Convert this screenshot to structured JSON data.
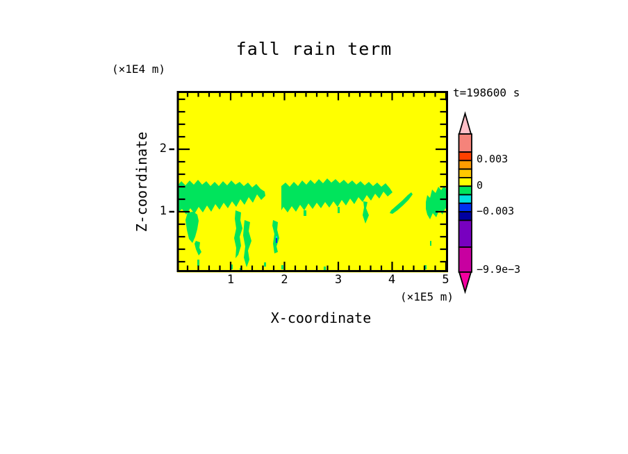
{
  "title": "fall rain term",
  "time_label": "t=198600 s",
  "axes": {
    "x": {
      "label": "X-coordinate",
      "unit": "(×1E5 m)",
      "tick_labels": [
        "1",
        "2",
        "3",
        "4",
        "5"
      ]
    },
    "z": {
      "label": "Z-coordinate",
      "unit": "(×1E4 m)",
      "tick_labels": [
        "1",
        "2"
      ]
    }
  },
  "colorbar": {
    "tick_labels": [
      "0.003",
      "0",
      "−0.003",
      "−9.9e−3"
    ],
    "colors": [
      "#FFC0C8",
      "#F5837A",
      "#FF4000",
      "#FF9C00",
      "#FFC800",
      "#FFFF00",
      "#00E45C",
      "#00E0E0",
      "#0030F0",
      "#0000A0",
      "#7800C0",
      "#C800A0",
      "#F500A0"
    ]
  },
  "colors": {
    "background": "#FFFFFF",
    "field_yellow": "#FFFF00",
    "anomaly_green": "#00E45C",
    "speck_blue": "#0030F0",
    "speck_cyan": "#00E0E0",
    "axis_black": "#000000"
  },
  "chart_data": {
    "type": "heatmap",
    "title": "fall rain term",
    "time": "t=198600 s",
    "xlabel": "X-coordinate",
    "x_unit": "(×1E5 m)",
    "ylabel": "Z-coordinate",
    "y_unit": "(×1E4 m)",
    "xlim": [
      0,
      5.05
    ],
    "ylim": [
      0,
      2.9
    ],
    "x_ticks": [
      1,
      2,
      3,
      4,
      5
    ],
    "y_ticks": [
      1,
      2
    ],
    "x_minor_tick_step": 0.2,
    "y_minor_tick_step": 0.2,
    "labeled_levels": [
      0.003,
      0,
      -0.003,
      -0.0099
    ],
    "palette_top_to_bottom": [
      "#FFC0C8",
      "#F5837A",
      "#FF4000",
      "#FF9C00",
      "#FFC800",
      "#FFFF00",
      "#00E45C",
      "#00E0E0",
      "#0030F0",
      "#0000A0",
      "#7800C0",
      "#C800A0",
      "#F500A0"
    ],
    "field_summary": [
      "Nearly the entire domain is in the 0 to +0.001 band (yellow).",
      "A ragged layer of slightly negative values (green, -0.001 to 0) spans most of the domain at z ≈ 0.9-1.5 ×1E4 m.",
      "The green layer breaks near x ≈ 1.7-1.95 and x ≈ 4.0-4.6 ×1E5 m; an isolated slanted green streak sits near x ≈ 4.0-4.4, z ≈ 0.9-1.2, and a separate green patch hugs the right edge.",
      "Narrow green streaks descend below the layer toward z ≈ 0-0.6 near x ≈ 0.2-0.4, 1.1-1.4 and 1.8-1.9 ×1E5 m, with tiny green specks near the bottom boundary.",
      "One tiny cyan/blue speck (≈ -0.002 to -0.003) at x ≈ 1.85, z ≈ 0.55 ×1E4 m."
    ]
  }
}
